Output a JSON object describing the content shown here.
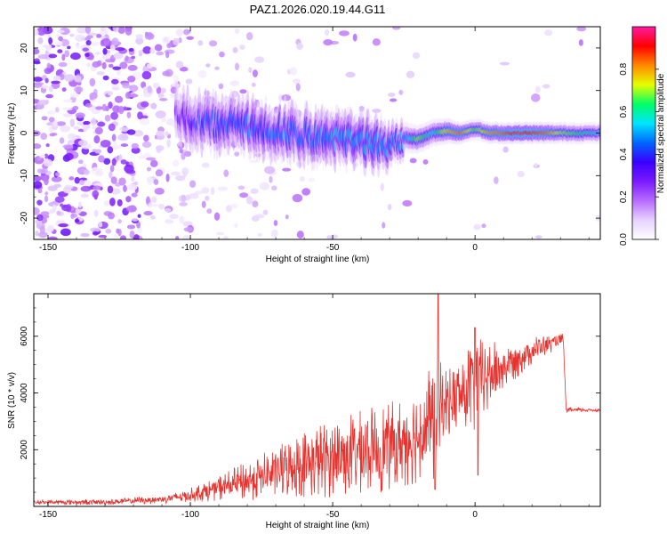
{
  "figure_title": "PAZ1.2026.020.19.44.G11",
  "chart_data": [
    {
      "type": "heatmap",
      "title": "PAZ1.2026.020.19.44.G11",
      "xlabel": "Height of straight line (km)",
      "ylabel": "Frequency (Hz)",
      "xlim": [
        -155,
        44
      ],
      "ylim": [
        -25,
        25
      ],
      "xticks": [
        -150,
        -100,
        -50,
        0
      ],
      "yticks": [
        -20,
        -10,
        0,
        10,
        20
      ],
      "grid": false,
      "colorbar": {
        "label": "Normalized spectral amplitude",
        "range": [
          0,
          1
        ],
        "ticks": [
          0.0,
          0.2,
          0.4,
          0.6,
          0.8
        ],
        "colormap": [
          "#ffffff",
          "#e6d2ff",
          "#b86bff",
          "#7a1aff",
          "#3a00ff",
          "#0066ff",
          "#00e5ff",
          "#00ff66",
          "#e6ff00",
          "#ff8800",
          "#ff0000",
          "#ff1aa3"
        ]
      },
      "ridge": [
        {
          "x": -105,
          "f": 4.0,
          "w": 2.5,
          "a": 0.22
        },
        {
          "x": -100,
          "f": 3.0,
          "w": 2.5,
          "a": 0.28
        },
        {
          "x": -95,
          "f": 2.5,
          "w": 2.5,
          "a": 0.36
        },
        {
          "x": -90,
          "f": 2.0,
          "w": 2.5,
          "a": 0.4
        },
        {
          "x": -85,
          "f": 2.0,
          "w": 2.5,
          "a": 0.38
        },
        {
          "x": -80,
          "f": 1.5,
          "w": 2.5,
          "a": 0.4
        },
        {
          "x": -75,
          "f": 1.0,
          "w": 2.5,
          "a": 0.38
        },
        {
          "x": -70,
          "f": 0.5,
          "w": 2.5,
          "a": 0.42
        },
        {
          "x": -65,
          "f": 0.5,
          "w": 2.5,
          "a": 0.4
        },
        {
          "x": -60,
          "f": -0.5,
          "w": 2.5,
          "a": 0.38
        },
        {
          "x": -55,
          "f": -1.0,
          "w": 2.5,
          "a": 0.42
        },
        {
          "x": -50,
          "f": -1.0,
          "w": 2.5,
          "a": 0.45
        },
        {
          "x": -45,
          "f": -1.5,
          "w": 2.5,
          "a": 0.45
        },
        {
          "x": -40,
          "f": -2.0,
          "w": 2.5,
          "a": 0.48
        },
        {
          "x": -35,
          "f": -2.5,
          "w": 2.5,
          "a": 0.48
        },
        {
          "x": -30,
          "f": -3.0,
          "w": 2.0,
          "a": 0.45
        },
        {
          "x": -25,
          "f": -1.0,
          "w": 1.5,
          "a": 0.45
        },
        {
          "x": -20,
          "f": -1.5,
          "w": 1.3,
          "a": 0.7
        },
        {
          "x": -15,
          "f": 0.0,
          "w": 1.3,
          "a": 0.55
        },
        {
          "x": -10,
          "f": 0.5,
          "w": 1.2,
          "a": 0.75
        },
        {
          "x": -5,
          "f": 0.0,
          "w": 1.0,
          "a": 0.85
        },
        {
          "x": 0,
          "f": 1.0,
          "w": 1.0,
          "a": 0.65
        },
        {
          "x": 5,
          "f": 0.0,
          "w": 1.0,
          "a": 0.8
        },
        {
          "x": 10,
          "f": 0.0,
          "w": 1.0,
          "a": 0.85
        },
        {
          "x": 15,
          "f": 0.0,
          "w": 1.0,
          "a": 0.95
        },
        {
          "x": 20,
          "f": 0.0,
          "w": 1.0,
          "a": 0.9
        },
        {
          "x": 25,
          "f": 0.0,
          "w": 1.0,
          "a": 0.85
        },
        {
          "x": 30,
          "f": 0.0,
          "w": 1.0,
          "a": 0.7
        },
        {
          "x": 35,
          "f": 0.0,
          "w": 1.0,
          "a": 0.65
        },
        {
          "x": 40,
          "f": 0.0,
          "w": 1.0,
          "a": 0.6
        },
        {
          "x": 44,
          "f": 0.0,
          "w": 1.0,
          "a": 0.55
        }
      ]
    },
    {
      "type": "line",
      "xlabel": "Height of straight line (km)",
      "ylabel": "SNR (10 * v/v)",
      "xlim": [
        -155,
        44
      ],
      "ylim": [
        0,
        7500
      ],
      "xticks": [
        -150,
        -100,
        -50,
        0
      ],
      "yticks": [
        2000,
        4000,
        6000
      ],
      "grid": false,
      "series": [
        {
          "color": "#e8322e",
          "envelope": [
            {
              "x": -155,
              "y": 150,
              "amp": 80
            },
            {
              "x": -130,
              "y": 150,
              "amp": 100
            },
            {
              "x": -110,
              "y": 250,
              "amp": 150
            },
            {
              "x": -100,
              "y": 400,
              "amp": 250
            },
            {
              "x": -90,
              "y": 650,
              "amp": 450
            },
            {
              "x": -80,
              "y": 900,
              "amp": 700
            },
            {
              "x": -70,
              "y": 1200,
              "amp": 900
            },
            {
              "x": -60,
              "y": 1500,
              "amp": 1200
            },
            {
              "x": -50,
              "y": 1700,
              "amp": 1400
            },
            {
              "x": -40,
              "y": 1900,
              "amp": 1500
            },
            {
              "x": -30,
              "y": 2100,
              "amp": 1600
            },
            {
              "x": -20,
              "y": 2500,
              "amp": 1700
            },
            {
              "x": -15,
              "y": 3000,
              "amp": 2400
            },
            {
              "x": -10,
              "y": 3700,
              "amp": 1200
            },
            {
              "x": -5,
              "y": 3900,
              "amp": 1400
            },
            {
              "x": 0,
              "y": 4300,
              "amp": 1800
            },
            {
              "x": 10,
              "y": 4900,
              "amp": 800
            },
            {
              "x": 20,
              "y": 5500,
              "amp": 500
            },
            {
              "x": 31,
              "y": 5900,
              "amp": 200
            },
            {
              "x": 32,
              "y": 3400,
              "amp": 80
            },
            {
              "x": 44,
              "y": 3400,
              "amp": 60
            }
          ],
          "spikes": [
            {
              "x": -13,
              "y": 7500
            },
            {
              "x": -14,
              "y": 600
            },
            {
              "x": 0,
              "y": 6300
            },
            {
              "x": 1,
              "y": 1100
            }
          ]
        }
      ]
    }
  ]
}
